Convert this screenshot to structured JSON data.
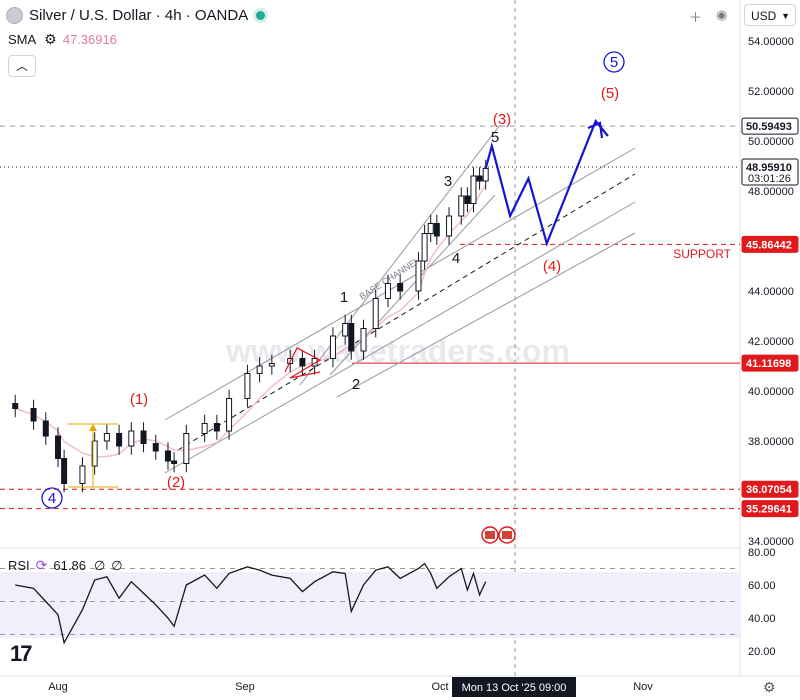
{
  "header": {
    "title": "Silver / U.S. Dollar · 4h · OANDA",
    "indicator_name": "SMA",
    "indicator_value": "47.36916",
    "collapse_icon": "chevron-up-icon",
    "currency": "USD"
  },
  "rsi": {
    "label": "RSI",
    "value": "61.86",
    "extra1": "∅",
    "extra2": "∅",
    "axis": [
      "80.00",
      "60.00",
      "40.00",
      "20.00"
    ]
  },
  "watermark": "www.wavetraders.com",
  "time_axis": {
    "labels": [
      "Aug",
      "Sep",
      "Oct",
      "Nov"
    ],
    "crosshair_label": "Mon 13 Oct '25   09:00"
  },
  "price_axis": {
    "ticks": [
      "54.00000",
      "52.00000",
      "50.00000",
      "48.00000",
      "46.00000",
      "44.00000",
      "42.00000",
      "40.00000",
      "38.00000",
      "36.00000",
      "34.00000"
    ]
  },
  "price_labels": [
    {
      "price": 50.59493,
      "text": "50.59493",
      "style": "white"
    },
    {
      "price": 48.9591,
      "text": "48.95910",
      "sub": "03:01:26",
      "style": "white"
    },
    {
      "price": 45.86442,
      "text": "45.86442",
      "style": "red"
    },
    {
      "price": 41.11698,
      "text": "41.11698",
      "style": "red"
    },
    {
      "price": 36.07054,
      "text": "36.07054",
      "style": "red"
    },
    {
      "price": 35.29641,
      "text": "35.29641",
      "style": "red"
    }
  ],
  "support_label": "SUPPORT",
  "channel_label": "BASE CHANNEL",
  "wave_labels": {
    "red": [
      "(1)",
      "(2)",
      "(3)",
      "(4)",
      "(5)"
    ],
    "black": [
      "1",
      "2",
      "3",
      "4",
      "5"
    ],
    "blue": [
      "4",
      "5"
    ]
  },
  "colors": {
    "bull": "#131722",
    "bear": "#131722",
    "sma": "#f4bccc",
    "red": "#e0191c",
    "blue": "#1414d2",
    "rsi": "#131722",
    "channel": "#9598a1"
  },
  "chart_data": {
    "type": "candlestick",
    "title": "Silver / U.S. Dollar · 4h · OANDA",
    "y_axis_range": [
      33.5,
      55
    ],
    "x_axis_labels": [
      "Aug",
      "Sep",
      "Oct",
      "Nov"
    ],
    "price_series": [
      {
        "date": "Jul 25",
        "close": 39.3
      },
      {
        "date": "Jul 28",
        "close": 38.8
      },
      {
        "date": "Jul 30",
        "close": 38.2
      },
      {
        "date": "Aug 1",
        "close": 37.3
      },
      {
        "date": "Aug 2",
        "close": 36.3
      },
      {
        "date": "Aug 5",
        "close": 37.0
      },
      {
        "date": "Aug 7",
        "close": 38.0
      },
      {
        "date": "Aug 9",
        "close": 38.3
      },
      {
        "date": "Aug 11",
        "close": 37.8
      },
      {
        "date": "Aug 13",
        "close": 38.4
      },
      {
        "date": "Aug 15",
        "close": 37.9
      },
      {
        "date": "Aug 17",
        "close": 37.6
      },
      {
        "date": "Aug 19",
        "close": 37.2
      },
      {
        "date": "Aug 20",
        "close": 37.1
      },
      {
        "date": "Aug 22",
        "close": 38.3
      },
      {
        "date": "Aug 25",
        "close": 38.7
      },
      {
        "date": "Aug 27",
        "close": 38.4
      },
      {
        "date": "Aug 29",
        "close": 39.7
      },
      {
        "date": "Sep 1",
        "close": 40.7
      },
      {
        "date": "Sep 3",
        "close": 41.0
      },
      {
        "date": "Sep 5",
        "close": 41.1
      },
      {
        "date": "Sep 8",
        "close": 41.3
      },
      {
        "date": "Sep 10",
        "close": 41.0
      },
      {
        "date": "Sep 12",
        "close": 41.3
      },
      {
        "date": "Sep 15",
        "close": 42.2
      },
      {
        "date": "Sep 17",
        "close": 42.7
      },
      {
        "date": "Sep 18",
        "close": 41.6
      },
      {
        "date": "Sep 20",
        "close": 42.5
      },
      {
        "date": "Sep 22",
        "close": 43.7
      },
      {
        "date": "Sep 24",
        "close": 44.3
      },
      {
        "date": "Sep 26",
        "close": 44.0
      },
      {
        "date": "Sep 29",
        "close": 45.2
      },
      {
        "date": "Sep 30",
        "close": 46.3
      },
      {
        "date": "Oct 1",
        "close": 46.7
      },
      {
        "date": "Oct 2",
        "close": 46.2
      },
      {
        "date": "Oct 4",
        "close": 47.0
      },
      {
        "date": "Oct 6",
        "close": 47.8
      },
      {
        "date": "Oct 7",
        "close": 47.5
      },
      {
        "date": "Oct 8",
        "close": 48.6
      },
      {
        "date": "Oct 9",
        "close": 48.4
      },
      {
        "date": "Oct 10",
        "close": 48.9
      }
    ],
    "horizontal_levels": [
      50.59493,
      48.9591,
      45.86442,
      41.11698,
      36.07054,
      35.29641
    ],
    "projection_path": [
      {
        "date": "Oct 10",
        "price": 48.9
      },
      {
        "date": "Oct 11",
        "price": 49.8
      },
      {
        "date": "Oct 14",
        "price": 47.0
      },
      {
        "date": "Oct 17",
        "price": 48.5
      },
      {
        "date": "Oct 20",
        "price": 45.9
      },
      {
        "date": "Oct 28",
        "price": 50.8
      },
      {
        "date": "Oct 30",
        "price": 50.2
      }
    ],
    "rsi": {
      "range": [
        20,
        80
      ],
      "levels": [
        70,
        50,
        30
      ],
      "series": [
        {
          "date": "Jul 25",
          "value": 60
        },
        {
          "date": "Jul 28",
          "value": 58
        },
        {
          "date": "Jul 30",
          "value": 50
        },
        {
          "date": "Aug 1",
          "value": 42
        },
        {
          "date": "Aug 2",
          "value": 25
        },
        {
          "date": "Aug 5",
          "value": 45
        },
        {
          "date": "Aug 7",
          "value": 63
        },
        {
          "date": "Aug 9",
          "value": 65
        },
        {
          "date": "Aug 11",
          "value": 52
        },
        {
          "date": "Aug 13",
          "value": 62
        },
        {
          "date": "Aug 15",
          "value": 55
        },
        {
          "date": "Aug 17",
          "value": 48
        },
        {
          "date": "Aug 19",
          "value": 40
        },
        {
          "date": "Aug 20",
          "value": 35
        },
        {
          "date": "Aug 22",
          "value": 60
        },
        {
          "date": "Aug 25",
          "value": 66
        },
        {
          "date": "Aug 27",
          "value": 58
        },
        {
          "date": "Aug 29",
          "value": 67
        },
        {
          "date": "Sep 1",
          "value": 71
        },
        {
          "date": "Sep 3",
          "value": 69
        },
        {
          "date": "Sep 5",
          "value": 66
        },
        {
          "date": "Sep 8",
          "value": 64
        },
        {
          "date": "Sep 10",
          "value": 56
        },
        {
          "date": "Sep 12",
          "value": 62
        },
        {
          "date": "Sep 15",
          "value": 68
        },
        {
          "date": "Sep 17",
          "value": 67
        },
        {
          "date": "Sep 18",
          "value": 44
        },
        {
          "date": "Sep 20",
          "value": 60
        },
        {
          "date": "Sep 22",
          "value": 69
        },
        {
          "date": "Sep 24",
          "value": 71
        },
        {
          "date": "Sep 26",
          "value": 64
        },
        {
          "date": "Sep 29",
          "value": 70
        },
        {
          "date": "Sep 30",
          "value": 73
        },
        {
          "date": "Oct 1",
          "value": 67
        },
        {
          "date": "Oct 2",
          "value": 58
        },
        {
          "date": "Oct 4",
          "value": 65
        },
        {
          "date": "Oct 6",
          "value": 70
        },
        {
          "date": "Oct 7",
          "value": 57
        },
        {
          "date": "Oct 8",
          "value": 67
        },
        {
          "date": "Oct 9",
          "value": 54
        },
        {
          "date": "Oct 10",
          "value": 62
        }
      ]
    }
  }
}
